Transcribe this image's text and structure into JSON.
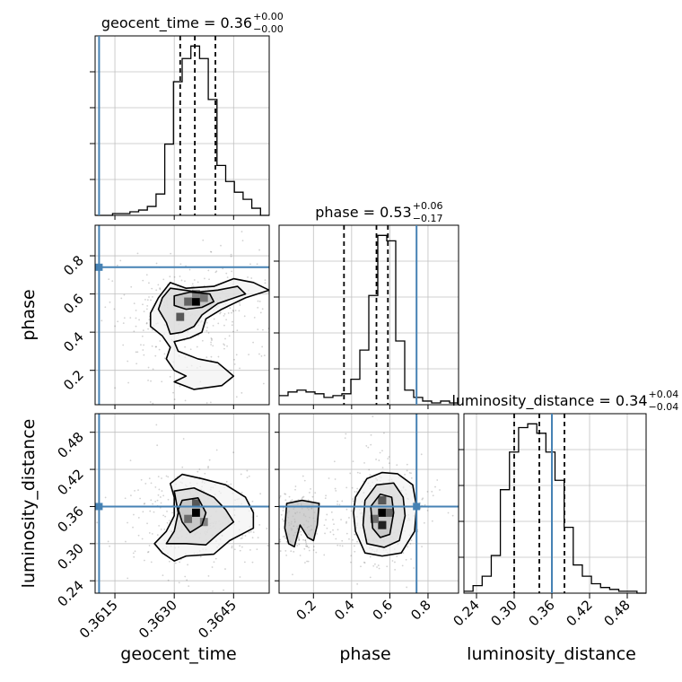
{
  "chart_data": {
    "type": "corner",
    "parameters": [
      "geocent_time",
      "phase",
      "luminosity_distance"
    ],
    "truths": {
      "geocent_time": 0.3611,
      "phase": 0.74,
      "luminosity_distance": 0.36
    },
    "titles": [
      {
        "name": "geocent_time",
        "median": "0.36",
        "plus": "+0.00",
        "minus": "−0.00"
      },
      {
        "name": "phase",
        "median": "0.53",
        "plus": "+0.06",
        "minus": "−0.17"
      },
      {
        "name": "luminosity_distance",
        "median": "0.34",
        "plus": "+0.04",
        "minus": "−0.04"
      }
    ],
    "axes": {
      "geocent_time": {
        "range": [
          0.361,
          0.3654
        ],
        "ticks": [
          0.3615,
          0.363,
          0.3645
        ],
        "tick_labels": [
          "0.3615",
          "0.3630",
          "0.3645"
        ]
      },
      "phase": {
        "range": [
          0.02,
          0.96
        ],
        "ticks": [
          0.2,
          0.4,
          0.6,
          0.8
        ],
        "tick_labels": [
          "0.2",
          "0.4",
          "0.6",
          "0.8"
        ]
      },
      "luminosity_distance": {
        "range": [
          0.22,
          0.51
        ],
        "ticks": [
          0.24,
          0.3,
          0.36,
          0.42,
          0.48
        ],
        "tick_labels": [
          "0.24",
          "0.30",
          "0.36",
          "0.42",
          "0.48"
        ]
      }
    },
    "histograms": {
      "geocent_time": {
        "edges": [
          0.361,
          0.36122,
          0.36144,
          0.36166,
          0.36188,
          0.3621,
          0.36232,
          0.36254,
          0.36276,
          0.36298,
          0.3632,
          0.36342,
          0.36364,
          0.36386,
          0.36408,
          0.3643,
          0.36452,
          0.36474,
          0.36496,
          0.36518,
          0.3654
        ],
        "counts": [
          0,
          0,
          1,
          1,
          2,
          3,
          5,
          12,
          40,
          75,
          88,
          95,
          88,
          65,
          28,
          19,
          13,
          9,
          4,
          0
        ],
        "quantiles": [
          0.36315,
          0.36352,
          0.36404
        ]
      },
      "phase": {
        "edges": [
          0.02,
          0.067,
          0.114,
          0.161,
          0.208,
          0.255,
          0.302,
          0.349,
          0.396,
          0.443,
          0.49,
          0.537,
          0.584,
          0.631,
          0.678,
          0.725,
          0.772,
          0.819,
          0.866,
          0.913,
          0.96
        ],
        "counts": [
          5,
          7,
          8,
          7,
          6,
          4,
          5,
          6,
          14,
          30,
          60,
          93,
          90,
          35,
          8,
          4,
          2,
          1,
          2,
          1
        ],
        "quantiles": [
          0.36,
          0.53,
          0.59
        ]
      },
      "luminosity_distance": {
        "edges": [
          0.22,
          0.2345,
          0.249,
          0.2635,
          0.278,
          0.2925,
          0.307,
          0.3215,
          0.336,
          0.3505,
          0.365,
          0.3795,
          0.394,
          0.4085,
          0.423,
          0.4375,
          0.452,
          0.4665,
          0.481,
          0.4955,
          0.51
        ],
        "counts": [
          1,
          4,
          9,
          20,
          55,
          75,
          88,
          90,
          85,
          75,
          60,
          35,
          15,
          9,
          5,
          3,
          2,
          1,
          1,
          0
        ],
        "quantiles": [
          0.3,
          0.34,
          0.38
        ]
      }
    },
    "density": [
      {
        "x": "geocent_time",
        "y": "phase",
        "contours": [
          [
            [
              0.3629,
              0.66
            ],
            [
              0.3633,
              0.63
            ],
            [
              0.364,
              0.64
            ],
            [
              0.3645,
              0.68
            ],
            [
              0.365,
              0.66
            ],
            [
              0.3654,
              0.62
            ],
            [
              0.3648,
              0.58
            ],
            [
              0.3642,
              0.52
            ],
            [
              0.3638,
              0.47
            ],
            [
              0.3637,
              0.4
            ],
            [
              0.3634,
              0.37
            ],
            [
              0.363,
              0.35
            ],
            [
              0.3631,
              0.3
            ],
            [
              0.3636,
              0.26
            ],
            [
              0.3641,
              0.24
            ],
            [
              0.3645,
              0.17
            ],
            [
              0.3642,
              0.12
            ],
            [
              0.3635,
              0.1
            ],
            [
              0.363,
              0.14
            ],
            [
              0.3633,
              0.17
            ],
            [
              0.363,
              0.2
            ],
            [
              0.3628,
              0.26
            ],
            [
              0.3629,
              0.32
            ],
            [
              0.3627,
              0.38
            ],
            [
              0.3624,
              0.43
            ],
            [
              0.3624,
              0.5
            ],
            [
              0.3626,
              0.58
            ],
            [
              0.3629,
              0.66
            ]
          ],
          [
            [
              0.3629,
              0.63
            ],
            [
              0.3636,
              0.61
            ],
            [
              0.3641,
              0.62
            ],
            [
              0.3646,
              0.64
            ],
            [
              0.3648,
              0.6
            ],
            [
              0.3641,
              0.55
            ],
            [
              0.3637,
              0.49
            ],
            [
              0.3635,
              0.43
            ],
            [
              0.3632,
              0.4
            ],
            [
              0.3629,
              0.39
            ],
            [
              0.3628,
              0.45
            ],
            [
              0.3626,
              0.52
            ],
            [
              0.3627,
              0.58
            ],
            [
              0.3629,
              0.63
            ]
          ],
          [
            [
              0.363,
              0.59
            ],
            [
              0.3634,
              0.61
            ],
            [
              0.3639,
              0.6
            ],
            [
              0.364,
              0.56
            ],
            [
              0.3637,
              0.53
            ],
            [
              0.3633,
              0.52
            ],
            [
              0.363,
              0.54
            ],
            [
              0.363,
              0.59
            ]
          ]
        ],
        "hot_cells": [
          {
            "x": 0.36355,
            "y": 0.56,
            "level": 1.0
          },
          {
            "x": 0.36335,
            "y": 0.56,
            "level": 0.55
          },
          {
            "x": 0.36375,
            "y": 0.58,
            "level": 0.45
          },
          {
            "x": 0.36355,
            "y": 0.6,
            "level": 0.4
          },
          {
            "x": 0.36315,
            "y": 0.48,
            "level": 0.6
          }
        ]
      },
      {
        "x": "geocent_time",
        "y": "luminosity_distance",
        "contours": [
          [
            [
              0.3629,
              0.397
            ],
            [
              0.3632,
              0.412
            ],
            [
              0.3637,
              0.405
            ],
            [
              0.3643,
              0.395
            ],
            [
              0.3648,
              0.375
            ],
            [
              0.365,
              0.35
            ],
            [
              0.365,
              0.325
            ],
            [
              0.3644,
              0.305
            ],
            [
              0.364,
              0.283
            ],
            [
              0.3633,
              0.28
            ],
            [
              0.363,
              0.272
            ],
            [
              0.3627,
              0.285
            ],
            [
              0.3625,
              0.3
            ],
            [
              0.3628,
              0.32
            ],
            [
              0.363,
              0.345
            ],
            [
              0.363,
              0.375
            ],
            [
              0.3629,
              0.397
            ]
          ],
          [
            [
              0.363,
              0.385
            ],
            [
              0.3635,
              0.39
            ],
            [
              0.364,
              0.375
            ],
            [
              0.3643,
              0.355
            ],
            [
              0.3645,
              0.335
            ],
            [
              0.3641,
              0.315
            ],
            [
              0.3638,
              0.298
            ],
            [
              0.3633,
              0.3
            ],
            [
              0.3628,
              0.3
            ],
            [
              0.363,
              0.32
            ],
            [
              0.3631,
              0.35
            ],
            [
              0.363,
              0.385
            ]
          ],
          [
            [
              0.3632,
              0.37
            ],
            [
              0.3636,
              0.374
            ],
            [
              0.3638,
              0.35
            ],
            [
              0.3637,
              0.33
            ],
            [
              0.3634,
              0.318
            ],
            [
              0.3632,
              0.335
            ],
            [
              0.3631,
              0.355
            ],
            [
              0.3632,
              0.37
            ]
          ]
        ],
        "hot_cells": [
          {
            "x": 0.36355,
            "y": 0.35,
            "level": 1.0
          },
          {
            "x": 0.36355,
            "y": 0.365,
            "level": 0.6
          },
          {
            "x": 0.36335,
            "y": 0.34,
            "level": 0.5
          },
          {
            "x": 0.36375,
            "y": 0.335,
            "level": 0.4
          }
        ]
      },
      {
        "x": "phase",
        "y": "luminosity_distance",
        "contours": [
          [
            [
              0.42,
              0.375
            ],
            [
              0.48,
              0.405
            ],
            [
              0.56,
              0.415
            ],
            [
              0.64,
              0.413
            ],
            [
              0.72,
              0.395
            ],
            [
              0.74,
              0.36
            ],
            [
              0.73,
              0.32
            ],
            [
              0.66,
              0.285
            ],
            [
              0.56,
              0.28
            ],
            [
              0.47,
              0.285
            ],
            [
              0.42,
              0.32
            ],
            [
              0.41,
              0.35
            ],
            [
              0.42,
              0.375
            ]
          ],
          [
            [
              0.47,
              0.37
            ],
            [
              0.53,
              0.395
            ],
            [
              0.62,
              0.398
            ],
            [
              0.67,
              0.375
            ],
            [
              0.68,
              0.345
            ],
            [
              0.65,
              0.305
            ],
            [
              0.57,
              0.294
            ],
            [
              0.48,
              0.3
            ],
            [
              0.46,
              0.33
            ],
            [
              0.47,
              0.37
            ]
          ],
          [
            [
              0.5,
              0.36
            ],
            [
              0.55,
              0.38
            ],
            [
              0.61,
              0.375
            ],
            [
              0.62,
              0.35
            ],
            [
              0.6,
              0.315
            ],
            [
              0.55,
              0.31
            ],
            [
              0.51,
              0.325
            ],
            [
              0.5,
              0.36
            ]
          ],
          [
            [
              0.06,
              0.365
            ],
            [
              0.14,
              0.37
            ],
            [
              0.23,
              0.365
            ],
            [
              0.22,
              0.33
            ],
            [
              0.2,
              0.305
            ],
            [
              0.17,
              0.31
            ],
            [
              0.13,
              0.33
            ],
            [
              0.1,
              0.295
            ],
            [
              0.07,
              0.3
            ],
            [
              0.05,
              0.325
            ],
            [
              0.06,
              0.365
            ]
          ]
        ],
        "hot_cells": [
          {
            "x": 0.56,
            "y": 0.35,
            "level": 1.0
          },
          {
            "x": 0.56,
            "y": 0.33,
            "level": 0.85
          },
          {
            "x": 0.56,
            "y": 0.37,
            "level": 0.6
          },
          {
            "x": 0.6,
            "y": 0.35,
            "level": 0.55
          },
          {
            "x": 0.52,
            "y": 0.34,
            "level": 0.5
          }
        ]
      }
    ],
    "colors": {
      "truth": "#4682b4",
      "hist": "#000000",
      "quantile": "#000000",
      "grid": "#c0c0c0",
      "points": "#000000"
    }
  }
}
